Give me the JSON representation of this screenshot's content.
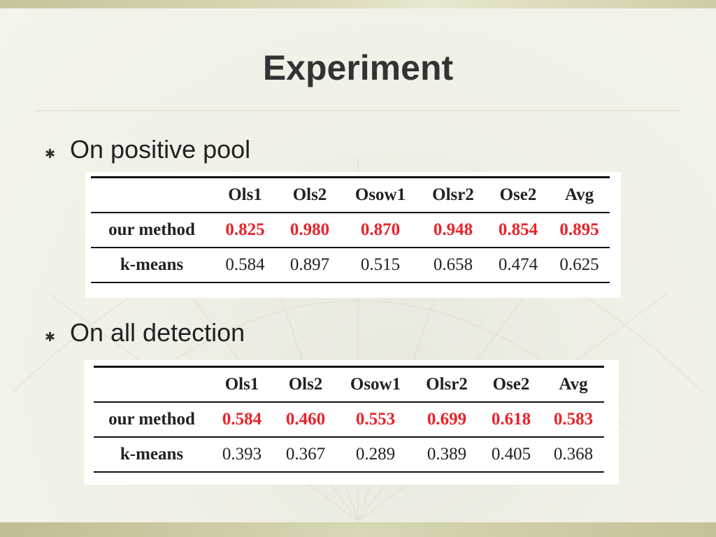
{
  "slide": {
    "title": "Experiment"
  },
  "sections": [
    {
      "bullet_label": "On positive pool",
      "table": {
        "columns": [
          "",
          "Ols1",
          "Ols2",
          "Osow1",
          "Olsr2",
          "Ose2",
          "Avg"
        ],
        "rows": [
          {
            "label": "our method",
            "values": [
              "0.825",
              "0.980",
              "0.870",
              "0.948",
              "0.854",
              "0.895"
            ]
          },
          {
            "label": "k-means",
            "values": [
              "0.584",
              "0.897",
              "0.515",
              "0.658",
              "0.474",
              "0.625"
            ]
          }
        ]
      }
    },
    {
      "bullet_label": "On all detection",
      "table": {
        "columns": [
          "",
          "Ols1",
          "Ols2",
          "Osow1",
          "Olsr2",
          "Ose2",
          "Avg"
        ],
        "rows": [
          {
            "label": "our method",
            "values": [
              "0.584",
              "0.460",
              "0.553",
              "0.699",
              "0.618",
              "0.583"
            ]
          },
          {
            "label": "k-means",
            "values": [
              "0.393",
              "0.367",
              "0.289",
              "0.389",
              "0.405",
              "0.368"
            ]
          }
        ]
      }
    }
  ],
  "colors": {
    "highlight": "#e8232a",
    "title": "#333333",
    "text": "#222222"
  },
  "icons": {
    "bullet": "asterisk-bullet-icon"
  }
}
